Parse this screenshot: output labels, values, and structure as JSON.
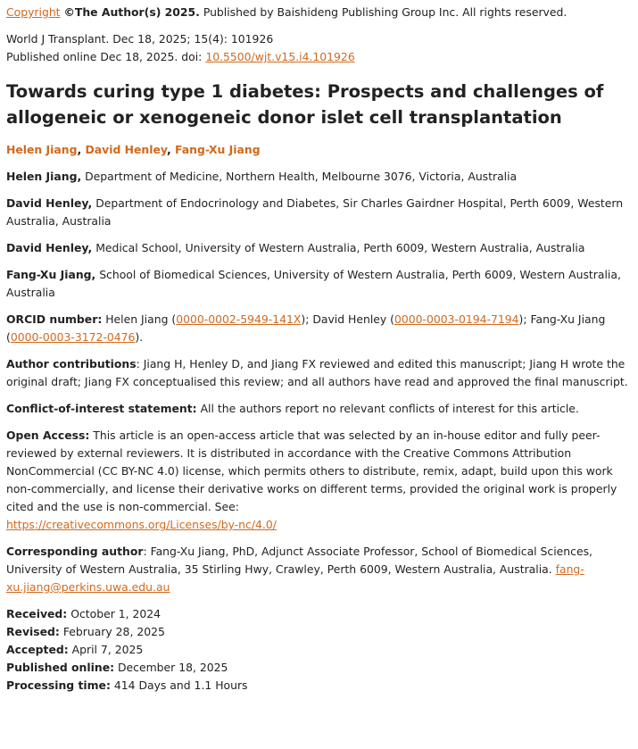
{
  "copyright": {
    "link": "Copyright",
    "bold": "©The Author(s) 2025.",
    "text": "Published by Baishideng Publishing Group Inc. All rights reserved."
  },
  "citation": {
    "journal": "World J Transplant. Dec 18, 2025; 15(4): 101926",
    "published": "Published online Dec 18, 2025. doi:",
    "doi": "10.5500/wjt.v15.i4.101926"
  },
  "title": "Towards curing type 1 diabetes: Prospects and challenges of allogeneic or xenogeneic donor islet cell transplantation",
  "authors": [
    "Helen Jiang",
    "David Henley",
    "Fang-Xu Jiang"
  ],
  "affiliations": [
    {
      "name": "Helen Jiang,",
      "text": "Department of Medicine, Northern Health, Melbourne 3076, Victoria, Australia"
    },
    {
      "name": "David Henley,",
      "text": "Department of Endocrinology and Diabetes, Sir Charles Gairdner Hospital, Perth 6009, Western Australia, Australia"
    },
    {
      "name": "David Henley,",
      "text": "Medical School, University of Western Australia, Perth 6009, Western Australia, Australia"
    },
    {
      "name": "Fang-Xu Jiang,",
      "text": "School of Biomedical Sciences, University of Western Australia, Perth 6009, Western Australia, Australia"
    }
  ],
  "orcid": {
    "label": "ORCID number:",
    "p1": "Helen Jiang (",
    "id1": "0000-0002-5949-141X",
    "p2": "); David Henley (",
    "id2": "0000-0003-0194-7194",
    "p3": "); Fang-Xu Jiang (",
    "id3": "0000-0003-3172-0476",
    "p4": ")."
  },
  "contributions": {
    "label": "Author contributions",
    "text": ": Jiang H, Henley D, and Jiang FX reviewed and edited this manuscript; Jiang H wrote the original draft; Jiang FX conceptualised this review; and all authors have read and approved the final manuscript."
  },
  "conflict": {
    "label": "Conflict-of-interest statement:",
    "text": "All the authors report no relevant conflicts of interest for this article."
  },
  "open_access": {
    "label": "Open Access:",
    "text": "This article is an open-access article that was selected by an in-house editor and fully peer-reviewed by external reviewers. It is distributed in accordance with the Creative Commons Attribution NonCommercial (CC BY-NC 4.0) license, which permits others to distribute, remix, adapt, build upon this work non-commercially, and license their derivative works on different terms, provided the original work is properly cited and the use is non-commercial. See:",
    "link": "https://creativecommons.org/Licenses/by-nc/4.0/"
  },
  "corresponding": {
    "label": "Corresponding author",
    "text": ": Fang-Xu Jiang, PhD, Adjunct Associate Professor, School of Biomedical Sciences, University of Western Australia, 35 Stirling Hwy, Crawley, Perth 6009, Western Australia, Australia.",
    "email": "fang-xu.jiang@perkins.uwa.edu.au"
  },
  "dates": [
    {
      "label": "Received:",
      "value": "October 1, 2024"
    },
    {
      "label": "Revised:",
      "value": "February 28, 2025"
    },
    {
      "label": "Accepted:",
      "value": "April 7, 2025"
    },
    {
      "label": "Published online:",
      "value": "December 18, 2025"
    },
    {
      "label": "Processing time:",
      "value": "414 Days and 1.1 Hours"
    }
  ]
}
